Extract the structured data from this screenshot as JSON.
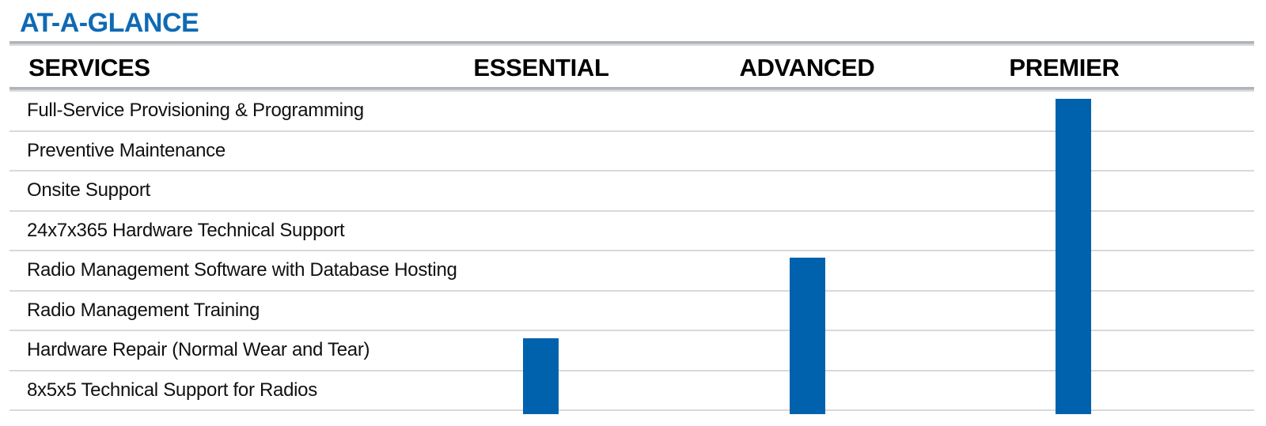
{
  "page": {
    "title": "AT-A-GLANCE"
  },
  "table": {
    "services_header": "SERVICES",
    "tiers": [
      {
        "label": "ESSENTIAL",
        "first_included_service_index": 6,
        "included_services": [
          "Hardware Repair (Normal Wear and Tear)",
          "8x5x5 Technical Support for Radios"
        ]
      },
      {
        "label": "ADVANCED",
        "first_included_service_index": 4,
        "included_services": [
          "Radio Management Software with Database Hosting",
          "Radio Management Training",
          "Hardware Repair (Normal Wear and Tear)",
          "8x5x5 Technical Support for Radios"
        ]
      },
      {
        "label": "PREMIER",
        "first_included_service_index": 0,
        "included_services": [
          "Full-Service Provisioning & Programming",
          "Preventive Maintenance",
          "Onsite Support",
          "24x7x365 Hardware Technical Support",
          "Radio Management Software with Database Hosting",
          "Radio Management Training",
          "Hardware Repair (Normal Wear and Tear)",
          "8x5x5 Technical Support for Radios"
        ]
      }
    ],
    "services": [
      {
        "label": "Full-Service Provisioning & Programming"
      },
      {
        "label": "Preventive Maintenance"
      },
      {
        "label": "Onsite Support"
      },
      {
        "label": "24x7x365 Hardware Technical Support"
      },
      {
        "label": "Radio Management Software with Database Hosting"
      },
      {
        "label": "Radio Management Training"
      },
      {
        "label": "Hardware Repair (Normal Wear and Tear)"
      },
      {
        "label": "8x5x5 Technical Support for Radios"
      }
    ]
  },
  "colors": {
    "title_blue": "#0f6ab4",
    "bar_blue": "#0062ad",
    "rule_gray": "#b0b4b8",
    "row_line_gray": "#d9d9d9"
  }
}
